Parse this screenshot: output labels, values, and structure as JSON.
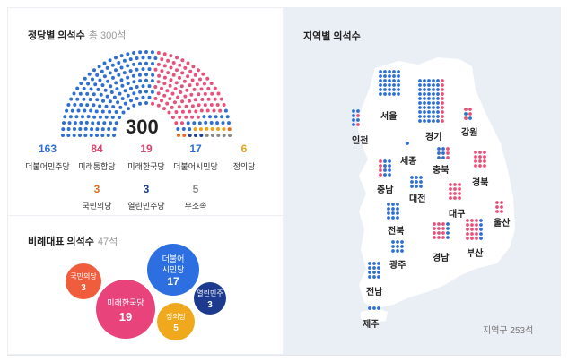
{
  "party_seats": {
    "title": "정당별 의석수",
    "total_label": "총 300석",
    "center_number": "300",
    "parties": [
      {
        "count": "163",
        "name": "더불어민주당",
        "color": "#2f6fcf",
        "seats": 163
      },
      {
        "count": "84",
        "name": "미래통합당",
        "color": "#e8527a",
        "seats": 84
      },
      {
        "count": "19",
        "name": "미래한국당",
        "color": "#e8527a",
        "seats": 19
      },
      {
        "count": "17",
        "name": "더불어시민당",
        "color": "#2f6fcf",
        "seats": 17
      },
      {
        "count": "6",
        "name": "정의당",
        "color": "#e8a317",
        "seats": 6
      },
      {
        "count": "3",
        "name": "국민의당",
        "color": "#e86a1c",
        "seats": 3
      },
      {
        "count": "3",
        "name": "열린민주당",
        "color": "#1d3f8f",
        "seats": 3
      },
      {
        "count": "5",
        "name": "무소속",
        "color": "#888888",
        "seats": 5
      }
    ]
  },
  "proportional": {
    "title": "비례대표 의석수",
    "total_label": "47석",
    "bubbles": [
      {
        "name": "국민의당",
        "count": "3",
        "color": "#ef5d3c"
      },
      {
        "name": "미래한국당",
        "count": "19",
        "color": "#e8437a"
      },
      {
        "name": "더불어 시민당",
        "count": "17",
        "color": "#2d6fe0"
      },
      {
        "name": "정의당",
        "count": "5",
        "color": "#f0a81c"
      },
      {
        "name": "열린민주",
        "count": "3",
        "color": "#1d3a8f"
      }
    ]
  },
  "regional": {
    "title": "지역별 의석수",
    "district_label": "지역구 253석",
    "regions": [
      "서울",
      "인천",
      "경기",
      "강원",
      "세종",
      "충북",
      "충남",
      "대전",
      "경북",
      "대구",
      "울산",
      "전북",
      "광주",
      "경남",
      "부산",
      "전남",
      "제주"
    ]
  },
  "colors": {
    "blue": "#2f6fcf",
    "pink": "#e8527a",
    "yellow": "#e8a317",
    "gray": "#888888",
    "map_land": "#ffffff",
    "map_bg": "#eaeef5"
  }
}
